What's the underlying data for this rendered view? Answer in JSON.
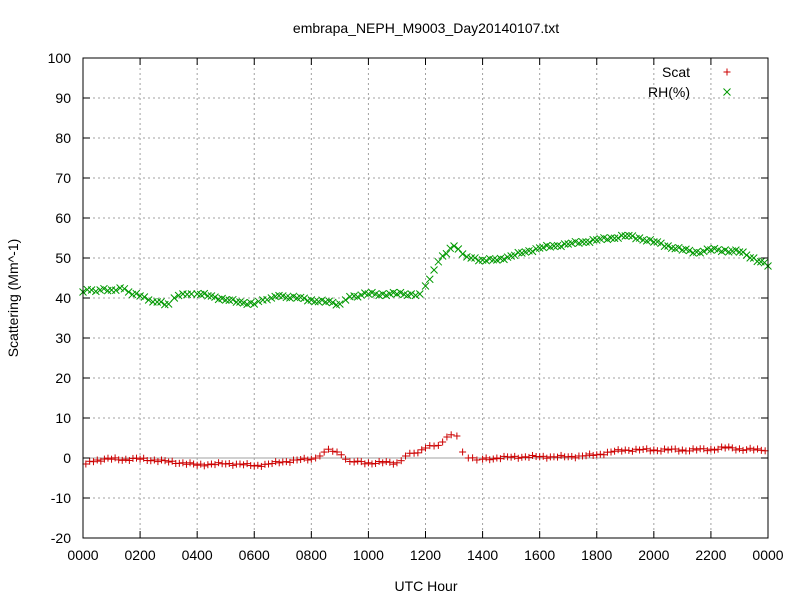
{
  "chart_data": {
    "type": "scatter",
    "title": "embrapa_NEPH_M9003_Day20140107.txt",
    "xlabel": "UTC Hour",
    "ylabel": "Scattering (Mm^-1)",
    "xlim": [
      0,
      24
    ],
    "ylim": [
      -20,
      100
    ],
    "xticks": [
      0,
      2,
      4,
      6,
      8,
      10,
      12,
      14,
      16,
      18,
      20,
      22,
      24
    ],
    "xtick_labels": [
      "0000",
      "0200",
      "0400",
      "0600",
      "0800",
      "1000",
      "1200",
      "1400",
      "1600",
      "1800",
      "2000",
      "2200",
      "0000"
    ],
    "yticks": [
      -20,
      -10,
      0,
      10,
      20,
      30,
      40,
      50,
      60,
      70,
      80,
      90,
      100
    ],
    "ytick_labels": [
      "-20",
      "-10",
      "0",
      "10",
      "20",
      "30",
      "40",
      "50",
      "60",
      "70",
      "80",
      "90",
      "100"
    ],
    "grid": true,
    "legend_position": "top-right",
    "zero_line": true,
    "series": [
      {
        "name": "Scat",
        "marker": "+",
        "color": "#cc0000",
        "x": [
          0.1,
          0.5,
          1.0,
          1.5,
          2.0,
          2.5,
          3.0,
          3.5,
          4.0,
          4.5,
          5.0,
          5.5,
          6.0,
          6.5,
          7.0,
          7.5,
          8.0,
          8.3,
          8.6,
          8.9,
          9.2,
          9.5,
          10.0,
          10.5,
          11.0,
          11.3,
          11.6,
          12.0,
          12.3,
          12.6,
          12.9,
          13.1,
          13.3,
          13.5,
          13.8,
          14.0,
          14.5,
          15.0,
          15.5,
          16.0,
          16.5,
          17.0,
          17.5,
          18.0,
          18.5,
          19.0,
          19.5,
          20.0,
          20.5,
          21.0,
          21.5,
          22.0,
          22.5,
          23.0,
          23.5,
          23.9
        ],
        "values": [
          -1.5,
          -0.5,
          -0.3,
          -0.3,
          -0.3,
          -0.5,
          -1.0,
          -1.2,
          -1.8,
          -1.5,
          -1.5,
          -1.5,
          -2.0,
          -1.5,
          -1.0,
          -0.5,
          -0.3,
          0.5,
          2.2,
          1.5,
          -0.3,
          -1.0,
          -1.2,
          -1.2,
          -1.2,
          0.5,
          1.2,
          2.5,
          3.0,
          4.0,
          5.8,
          5.5,
          1.5,
          0.0,
          -0.5,
          -0.3,
          0.0,
          0.2,
          0.3,
          0.3,
          0.3,
          0.3,
          0.5,
          0.8,
          1.5,
          2.0,
          2.0,
          2.0,
          2.0,
          2.0,
          2.0,
          2.2,
          2.5,
          2.3,
          2.0,
          1.8
        ]
      },
      {
        "name": "RH(%)",
        "marker": "x",
        "color": "#009900",
        "x": [
          0.0,
          0.3,
          0.6,
          1.0,
          1.3,
          1.6,
          2.0,
          2.3,
          2.6,
          3.0,
          3.2,
          3.5,
          3.8,
          4.0,
          4.5,
          5.0,
          5.5,
          6.0,
          6.3,
          6.6,
          7.0,
          7.5,
          8.0,
          8.5,
          9.0,
          9.2,
          9.5,
          10.0,
          10.5,
          11.0,
          11.5,
          11.8,
          12.0,
          12.3,
          12.6,
          13.0,
          13.3,
          13.6,
          14.0,
          14.5,
          15.0,
          15.5,
          16.0,
          16.5,
          17.0,
          17.5,
          18.0,
          18.5,
          19.0,
          19.5,
          20.0,
          20.5,
          21.0,
          21.5,
          22.0,
          22.5,
          23.0,
          23.5,
          24.0
        ],
        "values": [
          41.5,
          42.0,
          42.0,
          42.0,
          42.5,
          41.5,
          40.5,
          39.5,
          39.0,
          38.5,
          40.0,
          41.0,
          41.0,
          41.0,
          40.5,
          39.5,
          39.0,
          38.5,
          39.5,
          40.0,
          40.5,
          40.0,
          39.5,
          39.0,
          38.5,
          39.5,
          40.5,
          41.0,
          41.0,
          41.0,
          41.0,
          41.0,
          43.0,
          47.0,
          50.5,
          53.0,
          51.0,
          50.0,
          49.5,
          49.5,
          50.5,
          51.5,
          52.5,
          53.0,
          53.5,
          54.0,
          54.5,
          55.0,
          55.5,
          55.0,
          54.0,
          53.0,
          52.0,
          51.5,
          52.0,
          52.0,
          51.5,
          50.0,
          48.0
        ]
      }
    ]
  }
}
